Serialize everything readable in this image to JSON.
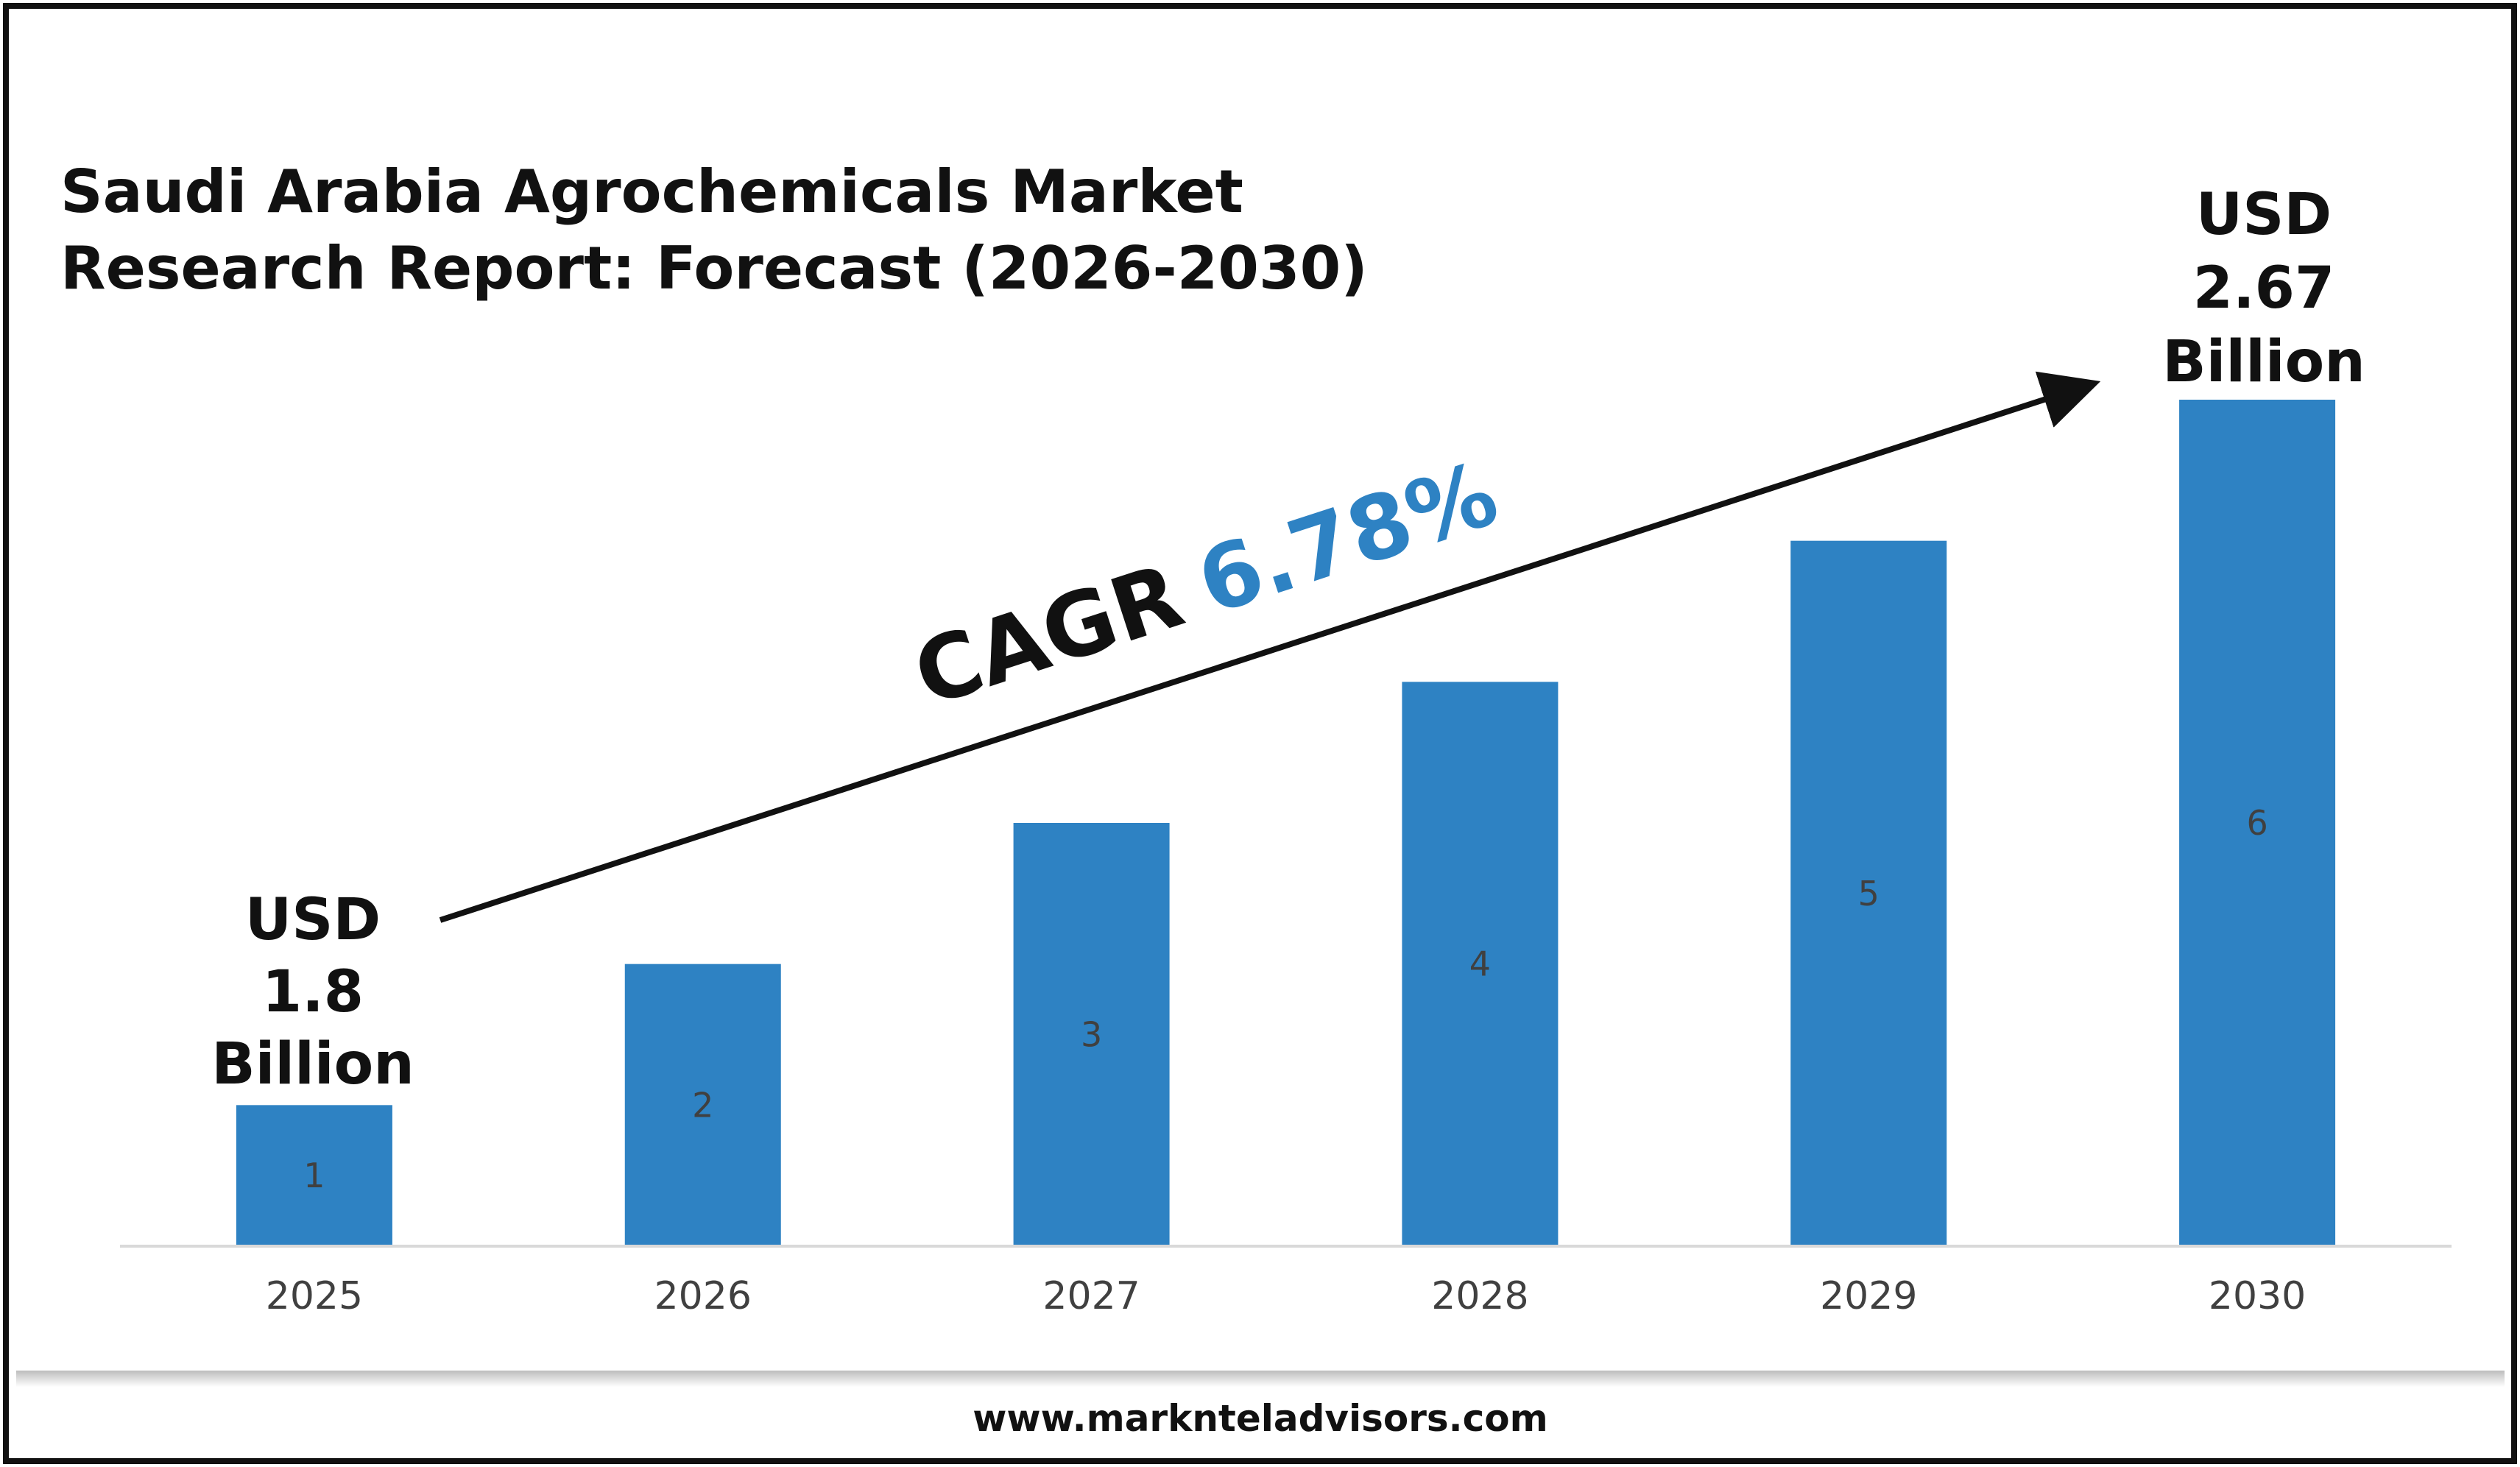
{
  "chart_data": {
    "type": "bar",
    "title_line1": "Saudi Arabia Agrochemicals Market",
    "title_line2": "Research Report: Forecast (2026-2030)",
    "categories": [
      "2025",
      "2026",
      "2027",
      "2028",
      "2029",
      "2030"
    ],
    "values": [
      1,
      2,
      3,
      4,
      5,
      6
    ],
    "data_labels": [
      "1",
      "2",
      "3",
      "4",
      "5",
      "6"
    ],
    "ylim": [
      0,
      6.6
    ],
    "grid": false,
    "bar_color": "#2E82C3",
    "start_callout": [
      "USD",
      "1.8",
      "Billion"
    ],
    "end_callout": [
      "USD",
      "2.67",
      "Billion"
    ],
    "cagr_label": "CAGR",
    "cagr_value": "6.78%",
    "cagr_color": "#2E82C3"
  },
  "footer": {
    "website": "www.marknteladvisors.com"
  }
}
